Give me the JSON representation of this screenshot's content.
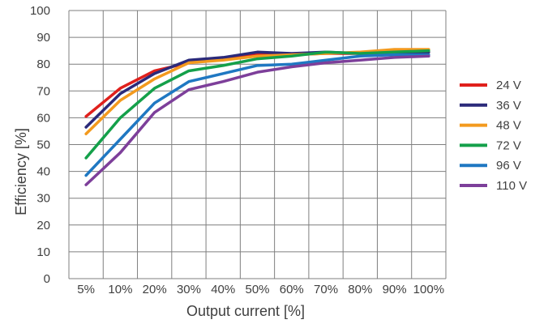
{
  "chart_data": {
    "type": "line",
    "title": "",
    "xlabel": "Output current [%]",
    "ylabel": "Efficiency [%]",
    "categories": [
      "5%",
      "10%",
      "20%",
      "30%",
      "40%",
      "50%",
      "60%",
      "70%",
      "80%",
      "90%",
      "100%"
    ],
    "y_ticks": [
      "0",
      "10",
      "20",
      "30",
      "40",
      "50",
      "60",
      "70",
      "80",
      "90",
      "100"
    ],
    "ylim": [
      0,
      100
    ],
    "grid": true,
    "legend_position": "right",
    "series": [
      {
        "name": "24 V",
        "color": "#e0201c",
        "values": [
          60.5,
          71,
          77.5,
          80.5,
          82,
          83.5,
          83.5,
          84,
          84,
          84.5,
          84.5
        ]
      },
      {
        "name": "36 V",
        "color": "#2b2a7a",
        "values": [
          56.5,
          69,
          76.5,
          81.5,
          82.5,
          84.5,
          84,
          84.5,
          84,
          84.5,
          84.5
        ]
      },
      {
        "name": "48 V",
        "color": "#f39a1e",
        "values": [
          54,
          66.5,
          74.5,
          80.5,
          81.5,
          83,
          83.5,
          84,
          84.5,
          85.5,
          85.5
        ]
      },
      {
        "name": "72 V",
        "color": "#14a04a",
        "values": [
          45,
          60,
          71,
          77.5,
          79.5,
          82,
          83,
          84.5,
          84,
          84.5,
          85
        ]
      },
      {
        "name": "96 V",
        "color": "#1f78c2",
        "values": [
          38.5,
          52,
          65.5,
          73.5,
          76.5,
          79.5,
          80,
          81.5,
          83,
          83.5,
          83.5
        ]
      },
      {
        "name": "110 V",
        "color": "#7d3f9a",
        "values": [
          35,
          47,
          62,
          70.5,
          73.5,
          77,
          79,
          80.5,
          81.5,
          82.5,
          83
        ]
      }
    ]
  }
}
